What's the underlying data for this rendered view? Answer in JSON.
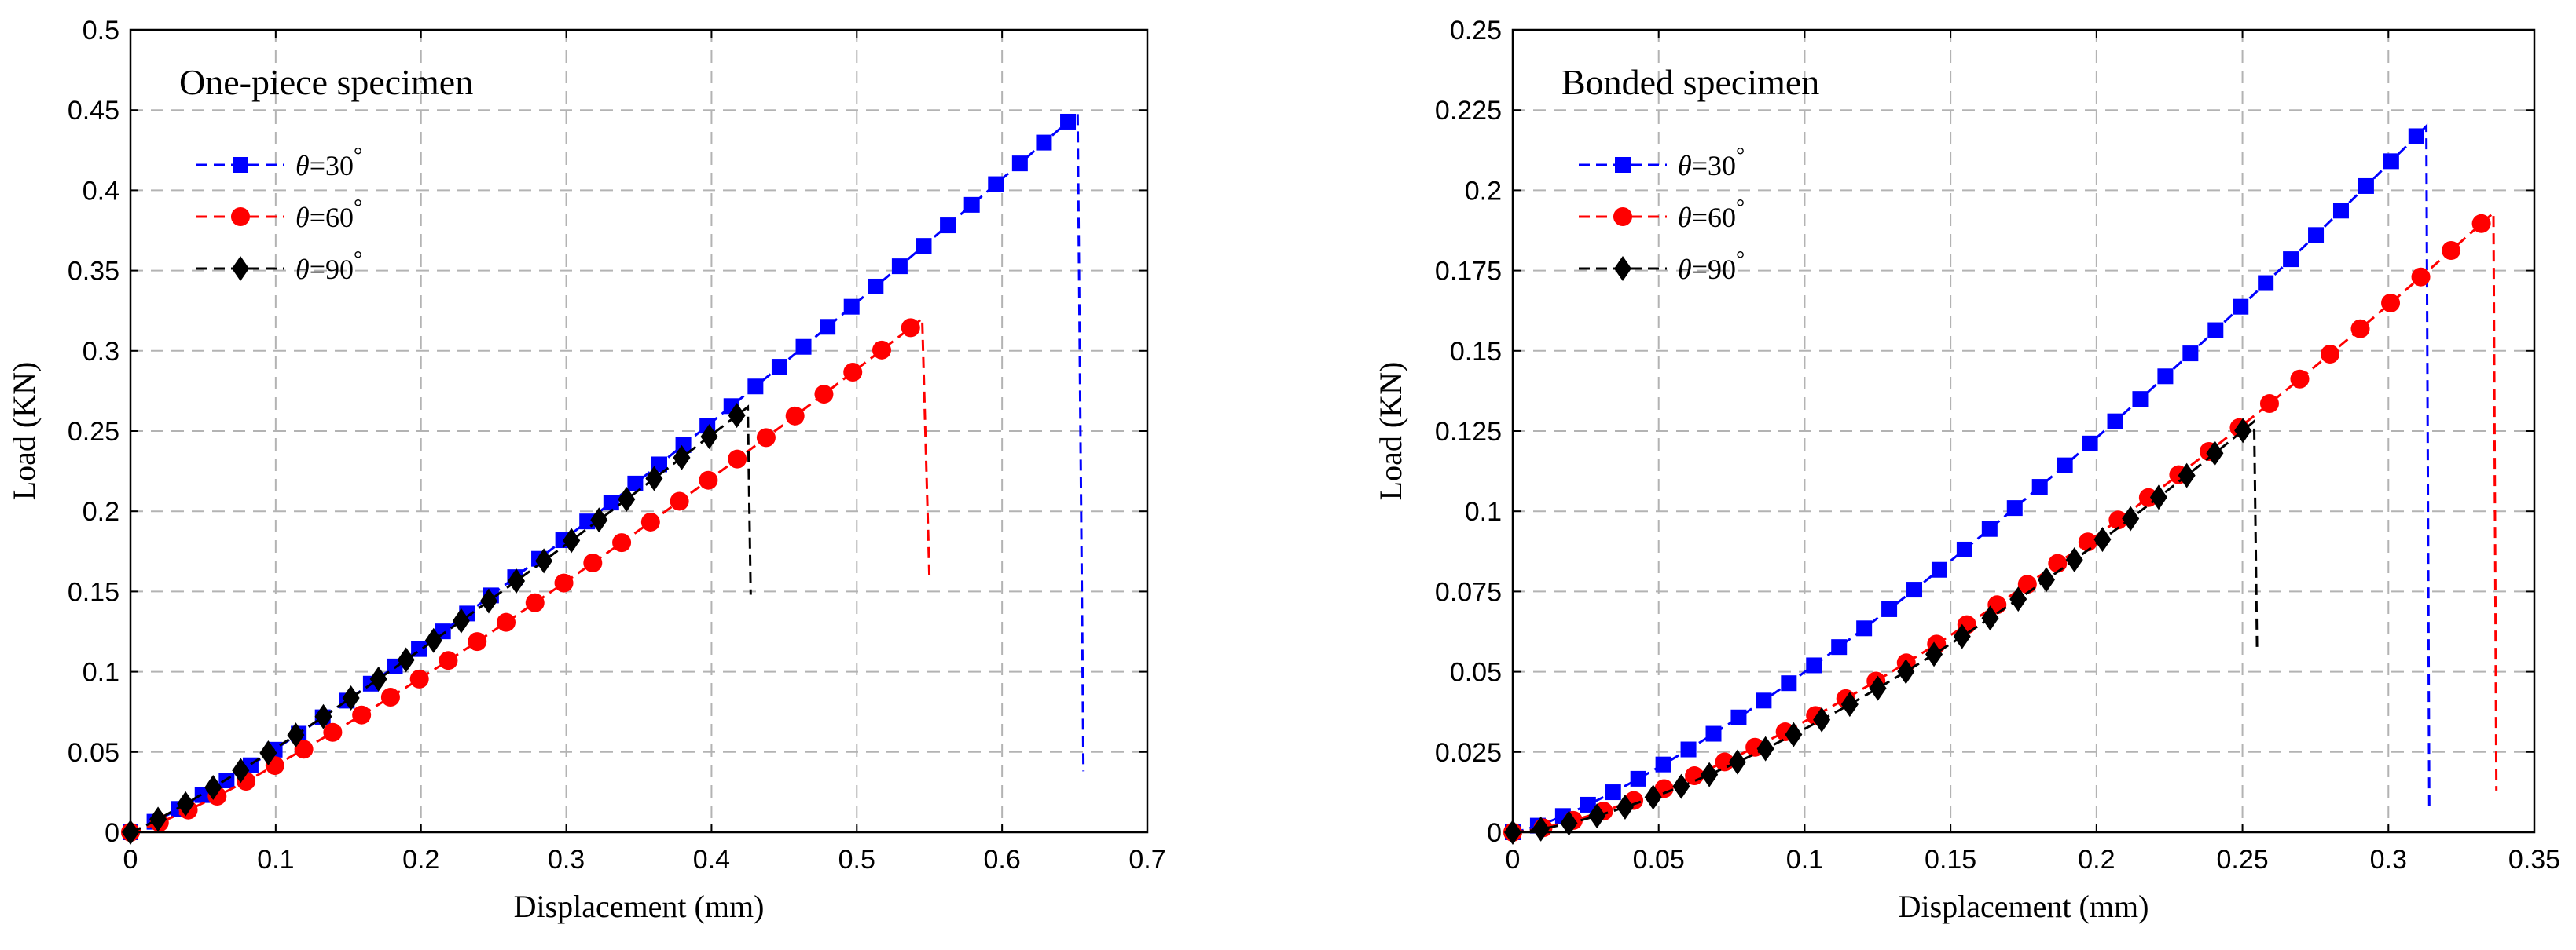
{
  "chart_data": [
    {
      "type": "line",
      "title": "One-piece specimen",
      "xlabel": "Displacement (mm)",
      "ylabel": "Load (KN)",
      "xlim": [
        0,
        0.7
      ],
      "ylim": [
        0,
        0.5
      ],
      "xticks": [
        0,
        0.1,
        0.2,
        0.3,
        0.4,
        0.5,
        0.6,
        0.7
      ],
      "xtick_labels": [
        "0",
        "0.1",
        "0.2",
        "0.3",
        "0.4",
        "0.5",
        "0.6",
        "0.7"
      ],
      "yticks": [
        0,
        0.05,
        0.1,
        0.15,
        0.2,
        0.25,
        0.3,
        0.35,
        0.4,
        0.45,
        0.5
      ],
      "ytick_labels": [
        "0",
        "0.05",
        "0.1",
        "0.15",
        "0.2",
        "0.25",
        "0.3",
        "0.35",
        "0.4",
        "0.45",
        "0.5"
      ],
      "grid": true,
      "legend_position": "top-left",
      "series": [
        {
          "name": "θ=30°",
          "theta_symbol": "θ",
          "equals": "=30",
          "degree": "°",
          "color": "#0000ff",
          "marker": "square",
          "curve_power": 1.15,
          "peak_x": 0.652,
          "peak_y": 0.448,
          "drop_x": 0.656,
          "drop_y": 0.038,
          "n_markers": 40
        },
        {
          "name": "θ=60°",
          "theta_symbol": "θ",
          "equals": "=60",
          "degree": "°",
          "color": "#ff0000",
          "marker": "circle",
          "curve_power": 1.2,
          "peak_x": 0.545,
          "peak_y": 0.32,
          "drop_x": 0.55,
          "drop_y": 0.158,
          "n_markers": 28
        },
        {
          "name": "θ=90°",
          "theta_symbol": "θ",
          "equals": "=90",
          "degree": "°",
          "color": "#000000",
          "marker": "diamond",
          "curve_power": 1.12,
          "peak_x": 0.425,
          "peak_y": 0.265,
          "drop_x": 0.427,
          "drop_y": 0.148,
          "n_markers": 23
        }
      ]
    },
    {
      "type": "line",
      "title": "Bonded specimen",
      "xlabel": "Displacement (mm)",
      "ylabel": "Load (KN)",
      "xlim": [
        0,
        0.35
      ],
      "ylim": [
        0,
        0.25
      ],
      "xticks": [
        0,
        0.05,
        0.1,
        0.15,
        0.2,
        0.25,
        0.3,
        0.35
      ],
      "xtick_labels": [
        "0",
        "0.05",
        "0.1",
        "0.15",
        "0.2",
        "0.25",
        "0.3",
        "0.35"
      ],
      "yticks": [
        0,
        0.025,
        0.05,
        0.075,
        0.1,
        0.125,
        0.15,
        0.175,
        0.2,
        0.225,
        0.25
      ],
      "ytick_labels": [
        "0",
        "0.025",
        "0.05",
        "0.075",
        "0.1",
        "0.125",
        "0.15",
        "0.175",
        "0.2",
        "0.225",
        "0.25"
      ],
      "grid": true,
      "legend_position": "top-left",
      "series": [
        {
          "name": "θ=30°",
          "theta_symbol": "θ",
          "equals": "=30",
          "degree": "°",
          "color": "#0000ff",
          "marker": "square",
          "curve_power": 1.3,
          "peak_x": 0.313,
          "peak_y": 0.22,
          "drop_x": 0.314,
          "drop_y": 0.008,
          "n_markers": 37
        },
        {
          "name": "θ=60°",
          "theta_symbol": "θ",
          "equals": "=60",
          "degree": "°",
          "color": "#ff0000",
          "marker": "circle",
          "curve_power": 1.42,
          "peak_x": 0.336,
          "peak_y": 0.193,
          "drop_x": 0.337,
          "drop_y": 0.013,
          "n_markers": 33
        },
        {
          "name": "θ=90°",
          "theta_symbol": "θ",
          "equals": "=90",
          "degree": "°",
          "color": "#000000",
          "marker": "diamond",
          "curve_power": 1.48,
          "peak_x": 0.254,
          "peak_y": 0.128,
          "drop_x": 0.255,
          "drop_y": 0.057,
          "n_markers": 27
        }
      ]
    }
  ]
}
